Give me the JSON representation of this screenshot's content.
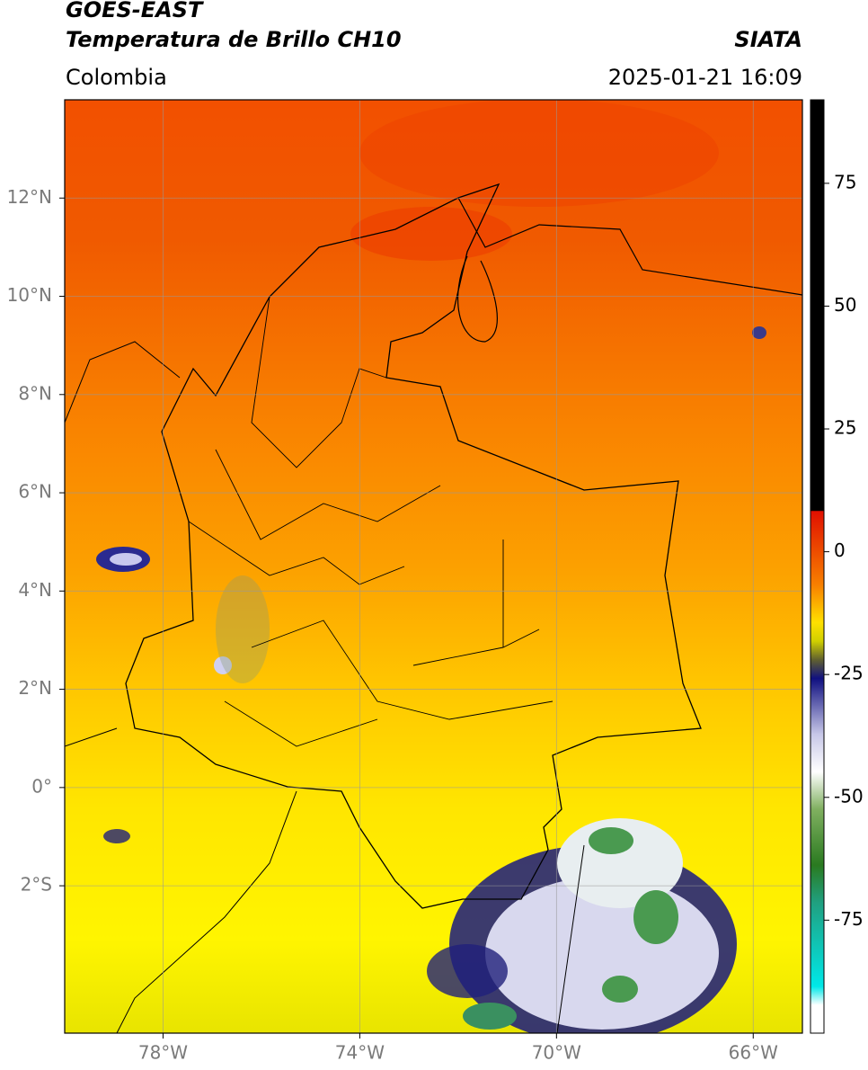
{
  "header": {
    "title": "GOES-EAST",
    "subtitle": "Temperatura de Brillo CH10",
    "region": "Colombia",
    "source": "SIATA",
    "timestamp": "2025-01-21 16:09"
  },
  "map": {
    "xlim": [
      -80,
      -65
    ],
    "ylim": [
      -5,
      14
    ],
    "grid": true,
    "xticks": [
      {
        "value": -78,
        "label": "78°W"
      },
      {
        "value": -74,
        "label": "74°W"
      },
      {
        "value": -70,
        "label": "70°W"
      },
      {
        "value": -66,
        "label": "66°W"
      }
    ],
    "yticks": [
      {
        "value": 12,
        "label": "12°N"
      },
      {
        "value": 10,
        "label": "10°N"
      },
      {
        "value": 8,
        "label": "8°N"
      },
      {
        "value": 6,
        "label": "6°N"
      },
      {
        "value": 4,
        "label": "4°N"
      },
      {
        "value": 2,
        "label": "2°N"
      },
      {
        "value": 0,
        "label": "0°"
      },
      {
        "value": -2,
        "label": "2°S"
      }
    ]
  },
  "colorbar": {
    "lim": [
      -98,
      92
    ],
    "ticks": [
      75,
      50,
      25,
      0,
      -25,
      -50,
      -75
    ]
  }
}
